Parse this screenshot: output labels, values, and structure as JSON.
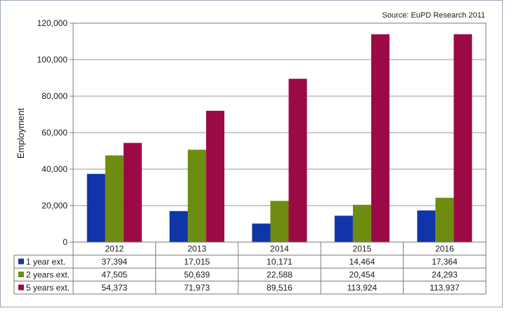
{
  "chart_data": {
    "type": "bar",
    "title": "",
    "source": "Source: EuPD Research 2011",
    "ylabel": "Employment",
    "xlabel": "",
    "ylim": [
      0,
      120000
    ],
    "yticks": [
      0,
      20000,
      40000,
      60000,
      80000,
      100000,
      120000
    ],
    "ytick_labels": [
      "0",
      "20,000",
      "40,000",
      "60,000",
      "80,000",
      "100,000",
      "120,000"
    ],
    "grid": true,
    "legend": "table-left",
    "categories": [
      "2012",
      "2013",
      "2014",
      "2015",
      "2016"
    ],
    "series": [
      {
        "name": "1 year ext.",
        "color": "#1035a8",
        "values": [
          37394,
          17015,
          10171,
          14464,
          17364
        ],
        "labels": [
          "37,394",
          "17,015",
          "10,171",
          "14,464",
          "17,364"
        ]
      },
      {
        "name": "2 years ext.",
        "color": "#6e8c10",
        "values": [
          47505,
          50639,
          22588,
          20454,
          24293
        ],
        "labels": [
          "47,505",
          "50,639",
          "22,588",
          "20,454",
          "24,293"
        ]
      },
      {
        "name": "5 years ext.",
        "color": "#9b0a45",
        "values": [
          54373,
          71973,
          89516,
          113924,
          113937
        ],
        "labels": [
          "54,373",
          "71,973",
          "89,516",
          "113,924",
          "113,937"
        ]
      }
    ]
  }
}
